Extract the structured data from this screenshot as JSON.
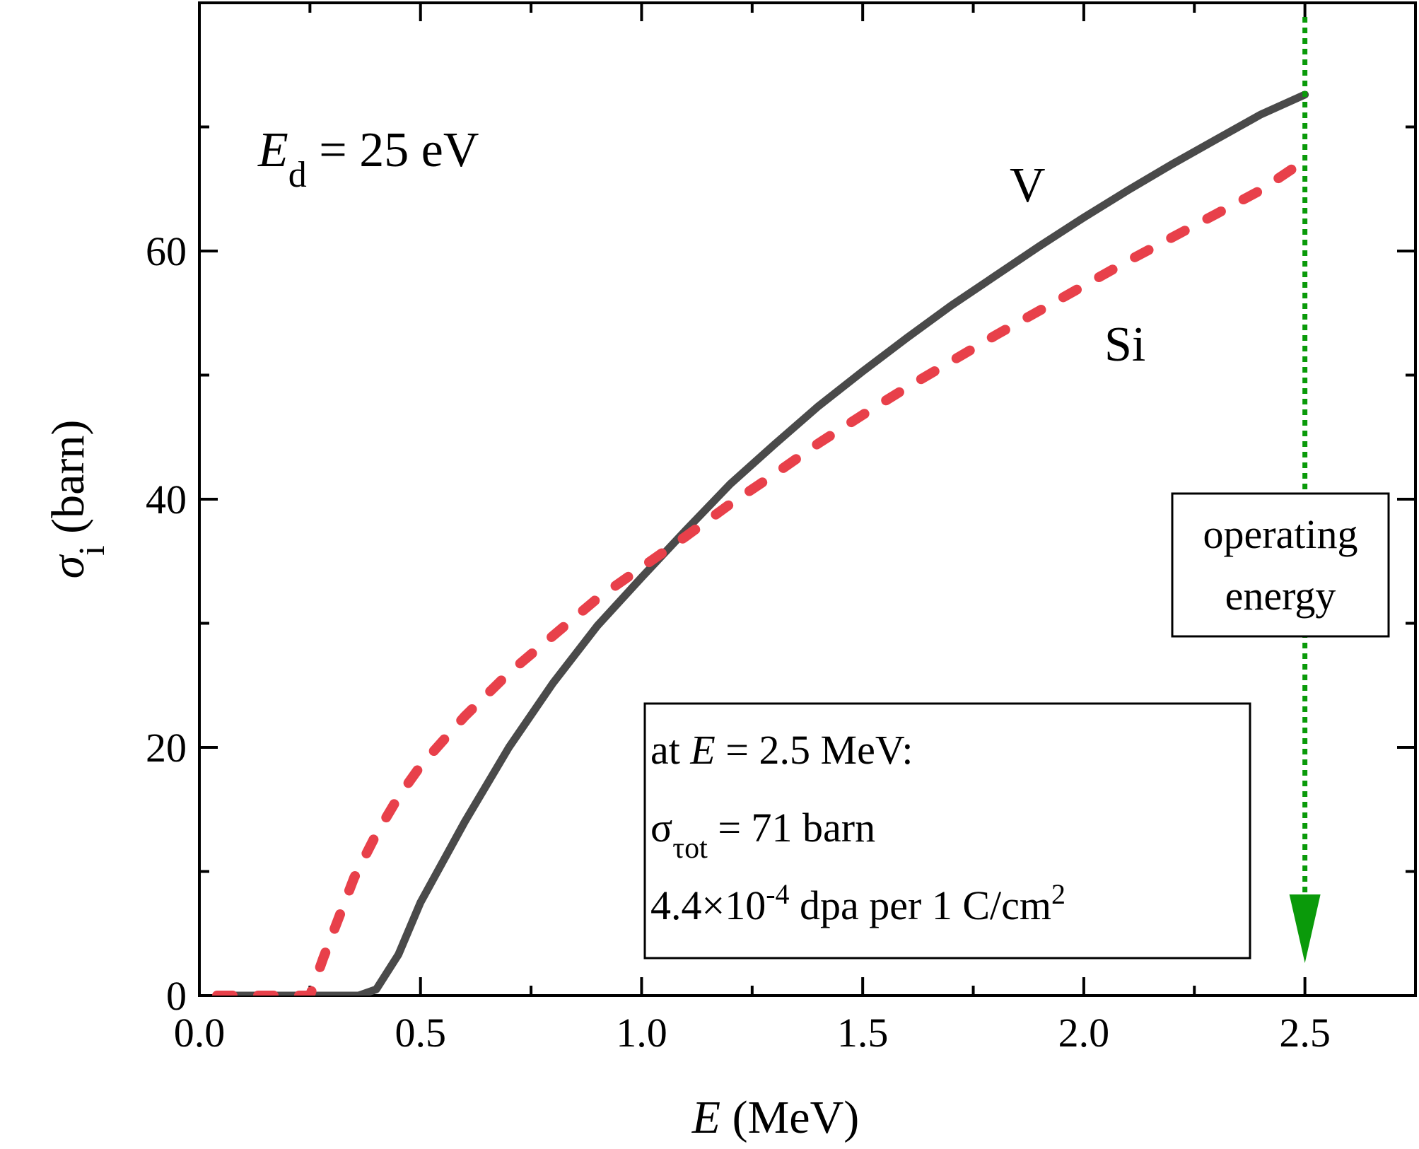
{
  "chart_data": {
    "type": "line",
    "title": "",
    "xlabel": {
      "var": "E",
      "unit": "(MeV)"
    },
    "ylabel": {
      "var": "σ",
      "sub": "i",
      "unit": "(barn)"
    },
    "xlim": [
      0.0,
      2.75
    ],
    "ylim": [
      0,
      80
    ],
    "xticks": [
      0.0,
      0.5,
      1.0,
      1.5,
      2.0,
      2.5
    ],
    "xtick_labels": [
      "0.0",
      "0.5",
      "1.0",
      "1.5",
      "2.0",
      "2.5"
    ],
    "yticks": [
      0,
      20,
      40,
      60
    ],
    "ytick_labels": [
      "0",
      "20",
      "40",
      "60"
    ],
    "series": [
      {
        "name": "V",
        "color": "#4a4a4a",
        "style": "solid",
        "x": [
          0.04,
          0.36,
          0.4,
          0.45,
          0.5,
          0.6,
          0.7,
          0.8,
          0.9,
          1.0,
          1.1,
          1.2,
          1.3,
          1.4,
          1.5,
          1.6,
          1.7,
          1.8,
          1.9,
          2.0,
          2.1,
          2.2,
          2.3,
          2.4,
          2.5
        ],
        "values": [
          0,
          0,
          0.5,
          3.3,
          7.5,
          14,
          20,
          25.2,
          29.8,
          33.7,
          37.5,
          41.2,
          44.4,
          47.5,
          50.3,
          53,
          55.6,
          58,
          60.4,
          62.7,
          64.9,
          67,
          69,
          71,
          72.6
        ]
      },
      {
        "name": "Si",
        "color": "#e8404a",
        "style": "dashed",
        "x": [
          0.04,
          0.25,
          0.28,
          0.35,
          0.4,
          0.45,
          0.5,
          0.6,
          0.7,
          0.8,
          0.9,
          1.0,
          1.1,
          1.2,
          1.3,
          1.4,
          1.5,
          1.6,
          1.7,
          1.8,
          1.9,
          2.0,
          2.1,
          2.2,
          2.3,
          2.4,
          2.5
        ],
        "values": [
          0,
          0,
          3,
          9.5,
          13,
          16,
          18.5,
          22.5,
          26,
          29,
          32,
          34.5,
          37,
          39.6,
          42,
          44.5,
          46.8,
          49,
          51.1,
          53.2,
          55.2,
          57.2,
          59.2,
          61.1,
          63,
          64.9,
          67.3
        ]
      }
    ],
    "marker_line": {
      "x": 2.5,
      "color": "#0a9a0a",
      "label": [
        "operating",
        "energy"
      ]
    },
    "annotations": {
      "ed": {
        "var": "E",
        "sub": "d",
        "text": " = 25 eV"
      },
      "label_v": "V",
      "label_si": "Si",
      "info_line1": {
        "prefix": "at ",
        "var": "E",
        "suffix": " = 2.5 MeV:"
      },
      "info_line2": {
        "sym": "σ",
        "sub": "τot",
        "suffix": " = 71 barn"
      },
      "info_line3": {
        "prefix": "4.4×10",
        "exp": "-4",
        "mid": " dpa per 1 C/cm",
        "exp2": "2"
      }
    }
  }
}
